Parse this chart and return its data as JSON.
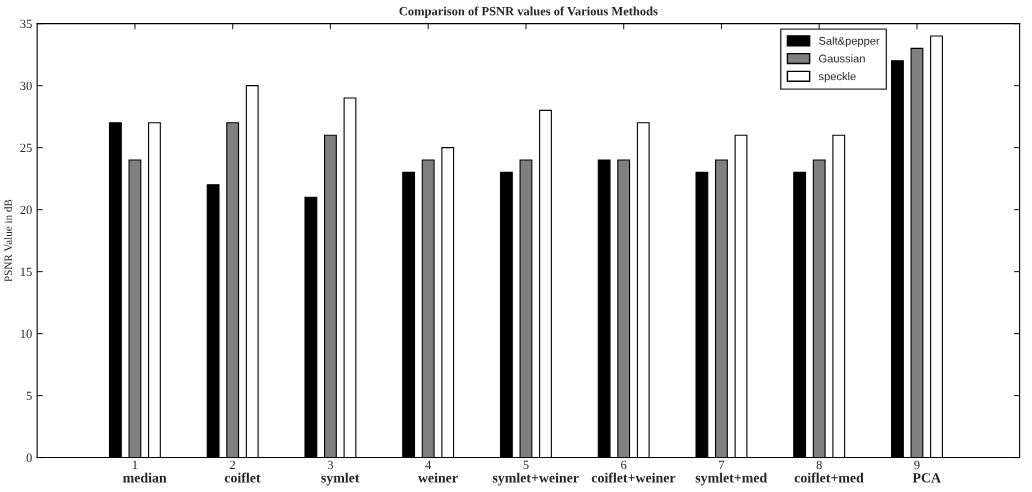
{
  "chart_data": {
    "type": "bar",
    "title": "Comparison of PSNR values of Various Methods",
    "ylabel": "PSNR Value in dB",
    "categories": [
      "1",
      "2",
      "3",
      "4",
      "5",
      "6",
      "7",
      "8",
      "9"
    ],
    "series": [
      {
        "name": "Salt&pepper",
        "color": "#000000",
        "values": [
          27,
          22,
          21,
          23,
          23,
          24,
          23,
          23,
          32
        ]
      },
      {
        "name": "Gaussian",
        "color": "#808080",
        "values": [
          24,
          27,
          26,
          24,
          24,
          24,
          24,
          24,
          33
        ]
      },
      {
        "name": "speckle",
        "color": "#ffffff",
        "values": [
          27,
          30,
          29,
          25,
          28,
          27,
          26,
          26,
          34
        ]
      }
    ],
    "annotations": [
      "median",
      "coiflet",
      "symlet",
      "weiner",
      "symlet+weiner",
      "coiflet+weiner",
      "symlet+med",
      "coiflet+med",
      "PCA"
    ],
    "ylim": [
      0,
      35
    ],
    "yticks": [
      0,
      5,
      10,
      15,
      20,
      25,
      30,
      35
    ],
    "grid": false,
    "legend": "top right"
  }
}
